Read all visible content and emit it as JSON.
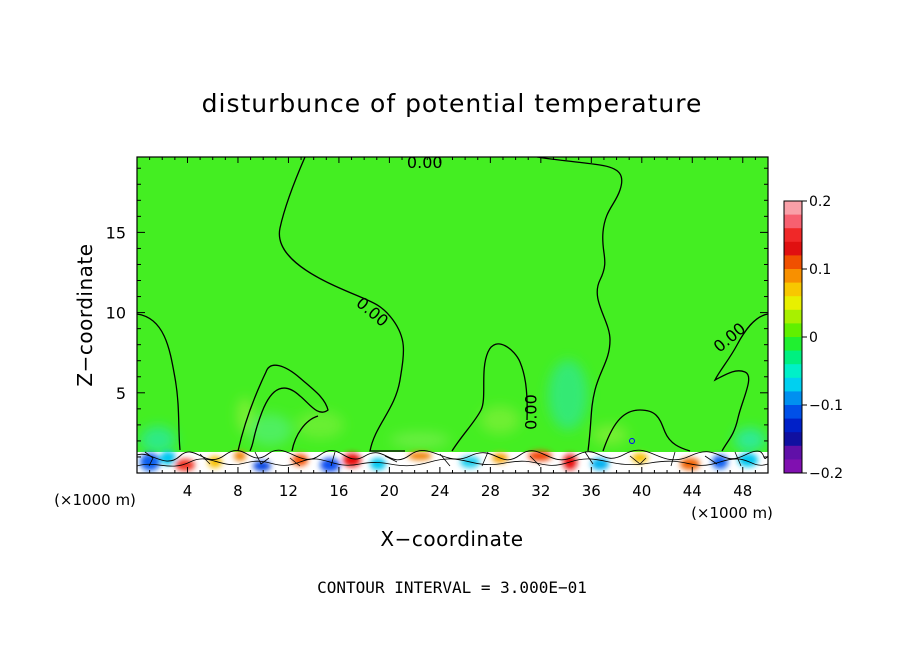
{
  "chart_data": {
    "type": "heatmap",
    "title": "disturbunce of potential temperature",
    "xlabel": "X−coordinate",
    "ylabel": "Z−coordinate",
    "x_unit": "(×1000 m)",
    "y_unit": "(×1000 m)",
    "xlim": [
      0,
      50
    ],
    "ylim": [
      0,
      19.7
    ],
    "xticks": [
      4,
      8,
      12,
      16,
      20,
      24,
      28,
      32,
      36,
      40,
      44,
      48
    ],
    "yticks": [
      5,
      10,
      15
    ],
    "colorbar": {
      "min": -0.2,
      "max": 0.2,
      "ticks": [
        {
          "value": 0.2,
          "label": "0.2"
        },
        {
          "value": 0.1,
          "label": "0.1"
        },
        {
          "value": 0,
          "label": "0"
        },
        {
          "value": -0.1,
          "label": "−0.1"
        },
        {
          "value": -0.2,
          "label": "−0.2"
        }
      ],
      "colors": [
        "#f9a0a8",
        "#f76070",
        "#f02828",
        "#e01010",
        "#f05000",
        "#f89000",
        "#f8c800",
        "#e8f000",
        "#a8f000",
        "#60f000",
        "#20f030",
        "#00f080",
        "#00f0c8",
        "#00d0f0",
        "#0090f0",
        "#0050e8",
        "#0020c8",
        "#1010a0",
        "#6010a8",
        "#8010b0"
      ]
    },
    "contour_labels": [
      {
        "text": "0.00",
        "x": 22.8,
        "y": 19.3,
        "angle": 0
      },
      {
        "text": "0.00",
        "x": 18.6,
        "y": 10.0,
        "angle": 40
      },
      {
        "text": "0.00",
        "x": 31.3,
        "y": 3.8,
        "angle": -90
      },
      {
        "text": "0.00",
        "x": 47.0,
        "y": 8.4,
        "angle": -40
      }
    ],
    "footnote": "CONTOUR INTERVAL = 3.000E−01",
    "grid": false,
    "legend": "colorbar-right"
  }
}
